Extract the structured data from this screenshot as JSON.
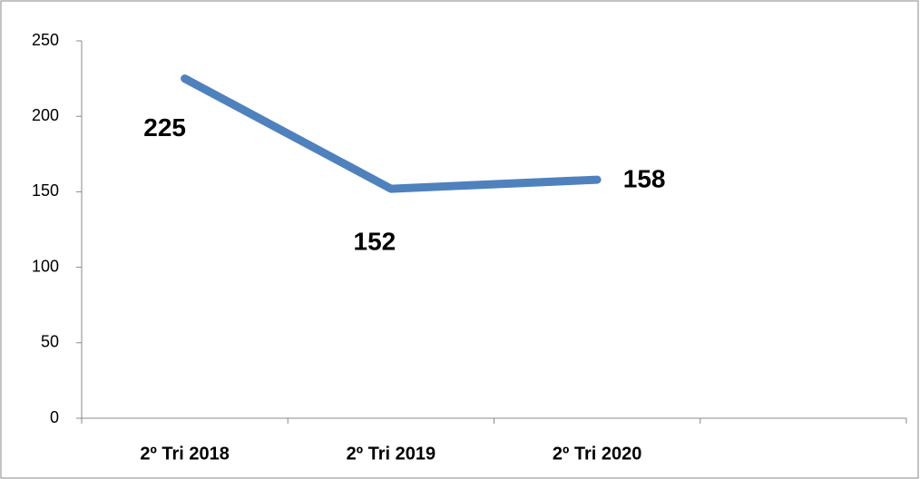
{
  "chart_data": {
    "type": "line",
    "categories": [
      "2º Tri 2018",
      "2º Tri 2019",
      "2º Tri 2020",
      null
    ],
    "values": [
      225,
      152,
      158,
      null
    ],
    "color": "#4f81bd",
    "ylim": [
      0,
      250
    ],
    "yticks": [
      0,
      50,
      100,
      150,
      200,
      250
    ],
    "grid": false
  }
}
